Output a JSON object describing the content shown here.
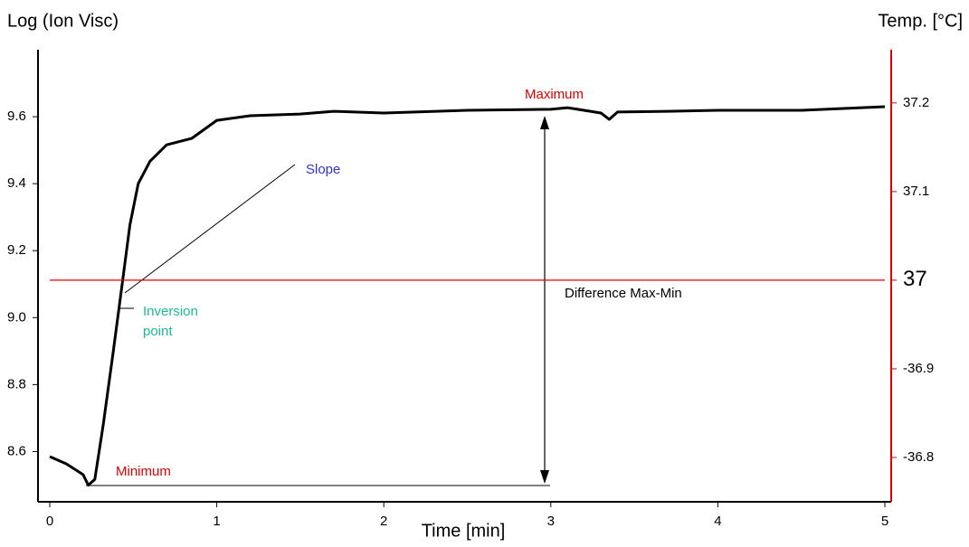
{
  "chart_data": {
    "type": "line",
    "y_label": "Log (Ion Visc)",
    "y2_label": "Temp. [°C]",
    "x_label": "Time [min]",
    "xlim": [
      0,
      5
    ],
    "xticks": [
      0,
      1,
      2,
      3,
      4,
      5
    ],
    "ylim": [
      8.45,
      9.8
    ],
    "yticks": [
      {
        "value": 8.6,
        "label": "8.6"
      },
      {
        "value": 8.8,
        "label": "8.8"
      },
      {
        "value": 9.0,
        "label": "9.0"
      },
      {
        "value": 9.2,
        "label": "9.2"
      },
      {
        "value": 9.4,
        "label": "9.4"
      },
      {
        "value": 9.6,
        "label": "9.6"
      }
    ],
    "y2lim": [
      36.75,
      37.26
    ],
    "y2ticks": [
      {
        "value": 36.8,
        "label": "-36.8"
      },
      {
        "value": 36.9,
        "label": "-36.9"
      },
      37,
      37.1,
      37.2
    ],
    "y2_axis_color": "#e00000",
    "series": [
      {
        "name": "Ion Visc",
        "color": "#000000",
        "x": [
          0,
          0.1,
          0.2,
          0.23,
          0.27,
          0.32,
          0.38,
          0.43,
          0.48,
          0.53,
          0.6,
          0.7,
          0.85,
          1.0,
          1.2,
          1.5,
          1.7,
          2.0,
          2.5,
          3.0,
          3.1,
          3.3,
          3.35,
          3.4,
          3.7,
          4.0,
          4.5,
          5.0
        ],
        "values": [
          8.585,
          8.563,
          8.531,
          8.5,
          8.517,
          8.68,
          8.897,
          9.087,
          9.277,
          9.4,
          9.467,
          9.516,
          9.535,
          9.589,
          9.603,
          9.608,
          9.616,
          9.611,
          9.619,
          9.622,
          9.627,
          9.611,
          9.592,
          9.614,
          9.616,
          9.619,
          9.619,
          9.63
        ]
      },
      {
        "name": "Temp",
        "color": "#e00000",
        "axis": "y2",
        "x": [
          0,
          5
        ],
        "values": [
          37,
          37
        ]
      }
    ],
    "annotations": [
      {
        "lines": [
          "Maximum"
        ],
        "color": "#e00000"
      },
      {
        "lines": [
          "Minimum"
        ],
        "color": "#e00000"
      },
      {
        "lines": [
          "Slope"
        ],
        "color": "#3333cc"
      },
      {
        "lines": [
          "Inversion",
          "point"
        ],
        "color": "#1abc9c"
      },
      {
        "lines": [
          "Difference Max-Min"
        ],
        "color": "#000000"
      }
    ]
  }
}
